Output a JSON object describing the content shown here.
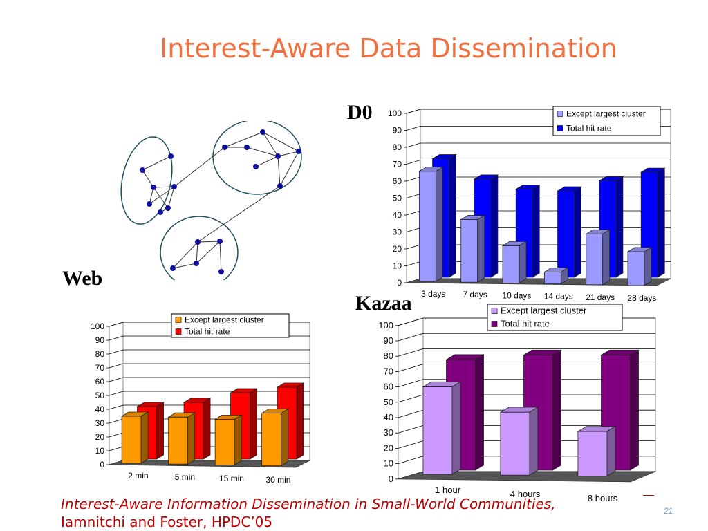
{
  "slide": {
    "title": "Interest-Aware Data Dissemination",
    "labels": {
      "d0": "D0",
      "web": "Web",
      "kazaa": "Kazaa"
    },
    "footer": {
      "line1": "Interest-Aware Information Dissemination in Small-World Communities,",
      "line2": "Iamnitchi and Foster, HPDC’05"
    },
    "slide_number": "21"
  },
  "chart_data": [
    {
      "id": "d0",
      "type": "bar",
      "categories": [
        "3 days",
        "7 days",
        "10 days",
        "14 days",
        "21 days",
        "28 days"
      ],
      "series": [
        {
          "name": "Except largest cluster",
          "values": [
            65,
            37,
            22,
            7,
            30,
            20
          ]
        },
        {
          "name": "Total hit rate",
          "values": [
            70,
            58,
            52,
            51,
            57,
            62
          ]
        }
      ],
      "yticks": [
        "0",
        "10",
        "20",
        "30",
        "40",
        "50",
        "60",
        "70",
        "80",
        "90",
        "100"
      ],
      "ylim": [
        0,
        100
      ],
      "legend": "top-right",
      "colors": {
        "front": "#9999ff",
        "back": "#0000ff"
      },
      "grid": true
    },
    {
      "id": "web",
      "type": "bar",
      "categories": [
        "2 min",
        "5 min",
        "15 min",
        "30 min"
      ],
      "series": [
        {
          "name": "Except largest cluster",
          "values": [
            34,
            34,
            33,
            38
          ]
        },
        {
          "name": "Total hit rate",
          "values": [
            38,
            41,
            48,
            52
          ]
        }
      ],
      "yticks": [
        "0",
        "10",
        "20",
        "30",
        "40",
        "50",
        "60",
        "70",
        "80",
        "90",
        "100"
      ],
      "ylim": [
        0,
        100
      ],
      "legend": "top-right",
      "colors": {
        "front": "#ff9900",
        "back": "#ff0000"
      },
      "grid": true
    },
    {
      "id": "kazaa",
      "type": "bar",
      "categories": [
        "1 hour",
        "4 hours",
        "8 hours"
      ],
      "series": [
        {
          "name": "Except largest cluster",
          "values": [
            57,
            41,
            29
          ]
        },
        {
          "name": "Total hit rate",
          "values": [
            72,
            75,
            75
          ]
        }
      ],
      "yticks": [
        "0",
        "10",
        "20",
        "30",
        "40",
        "50",
        "60",
        "70",
        "80",
        "90",
        "100"
      ],
      "ylim": [
        0,
        100
      ],
      "legend": "top-right",
      "colors": {
        "front": "#cc99ff",
        "back": "#800080"
      },
      "grid": true
    }
  ]
}
